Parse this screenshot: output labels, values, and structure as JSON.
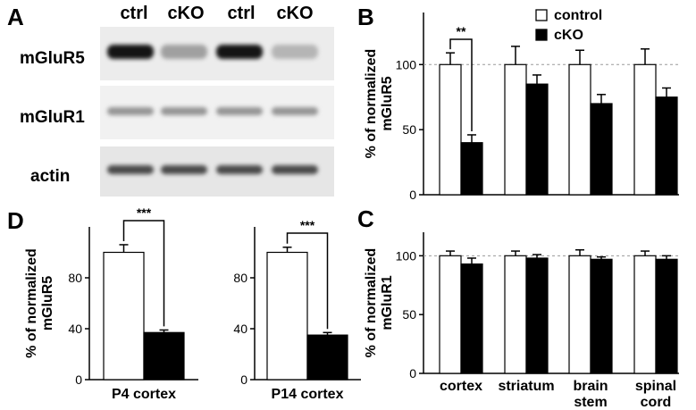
{
  "panels": {
    "A": "A",
    "B": "B",
    "C": "C",
    "D": "D"
  },
  "blot": {
    "lane_labels": [
      "ctrl",
      "cKO",
      "ctrl",
      "cKO"
    ],
    "row_labels": [
      "mGluR5",
      "mGluR1",
      "actin"
    ],
    "band_intensity": [
      [
        1.0,
        0.35,
        1.0,
        0.25
      ],
      [
        0.4,
        0.4,
        0.4,
        0.4
      ],
      [
        0.75,
        0.75,
        0.75,
        0.75
      ]
    ]
  },
  "legend": {
    "control": "control",
    "cko": "cKO"
  },
  "chart_data": [
    {
      "panel": "B",
      "type": "bar",
      "ylabel_line1": "% of normalized",
      "ylabel_line2": "mGluR5",
      "ylim": [
        0,
        140
      ],
      "yticks": [
        0,
        50,
        100
      ],
      "ytick_labels": [
        "0",
        "50",
        "100"
      ],
      "reference_line": 100,
      "categories": [
        "cortex",
        "striatum",
        "brain stem",
        "spinal cord"
      ],
      "series": [
        {
          "name": "control",
          "values": [
            100,
            100,
            100,
            100
          ],
          "errors": [
            9,
            14,
            11,
            12
          ]
        },
        {
          "name": "cKO",
          "values": [
            40,
            85,
            70,
            75
          ],
          "errors": [
            6,
            7,
            7,
            7
          ]
        }
      ],
      "significance": [
        {
          "category": 0,
          "label": "**"
        }
      ],
      "legend_position": "top-right"
    },
    {
      "panel": "C",
      "type": "bar",
      "ylabel_line1": "% of normalized",
      "ylabel_line2": "mGluR1",
      "ylim": [
        0,
        120
      ],
      "yticks": [
        0,
        50,
        100
      ],
      "ytick_labels": [
        "0",
        "50",
        "100"
      ],
      "reference_line": 100,
      "categories": [
        "cortex",
        "striatum",
        "brain stem",
        "spinal cord"
      ],
      "category_lines": [
        [
          "cortex"
        ],
        [
          "striatum"
        ],
        [
          "brain",
          "stem"
        ],
        [
          "spinal",
          "cord"
        ]
      ],
      "series": [
        {
          "values": [
            100,
            100,
            100,
            100
          ],
          "errors": [
            4,
            4,
            5,
            4
          ]
        },
        {
          "values": [
            93,
            98,
            97,
            97
          ],
          "errors": [
            5,
            3,
            2,
            3
          ]
        }
      ]
    },
    {
      "panel": "D1",
      "type": "bar",
      "ylabel_line1": "% of normalized",
      "ylabel_line2": "mGluR5",
      "ylim": [
        0,
        120
      ],
      "yticks": [
        0,
        40,
        80
      ],
      "ytick_labels": [
        "0",
        "40",
        "80"
      ],
      "categories": [
        "P4 cortex"
      ],
      "series": [
        {
          "values": [
            100
          ],
          "errors": [
            6
          ]
        },
        {
          "values": [
            37
          ],
          "errors": [
            2
          ]
        }
      ],
      "significance": [
        {
          "category": 0,
          "label": "***"
        }
      ]
    },
    {
      "panel": "D2",
      "type": "bar",
      "ylim": [
        0,
        120
      ],
      "yticks": [
        0,
        40,
        80
      ],
      "ytick_labels": [
        "0",
        "40",
        "80"
      ],
      "categories": [
        "P14 cortex"
      ],
      "series": [
        {
          "values": [
            100
          ],
          "errors": [
            4
          ]
        },
        {
          "values": [
            35
          ],
          "errors": [
            2
          ]
        }
      ],
      "significance": [
        {
          "category": 0,
          "label": "***"
        }
      ]
    }
  ]
}
